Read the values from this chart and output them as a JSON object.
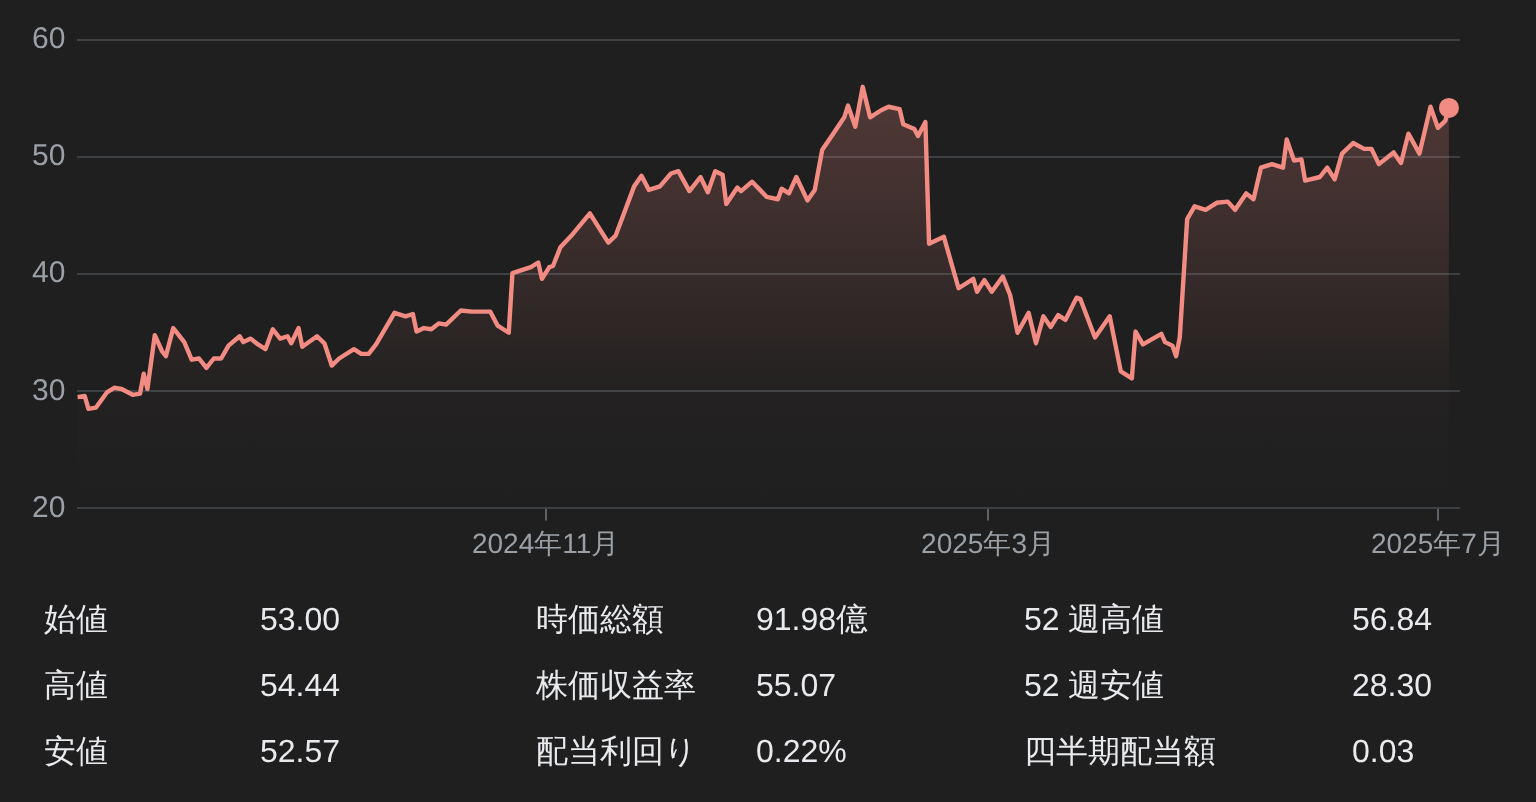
{
  "chart_data": {
    "type": "area",
    "color": "#f28b82",
    "x": [
      "2024-06-27",
      "2024-06-29",
      "2024-06-30",
      "2024-07-02",
      "2024-07-05",
      "2024-07-07",
      "2024-07-09",
      "2024-07-12",
      "2024-07-14",
      "2024-07-15",
      "2024-07-16",
      "2024-07-18",
      "2024-07-20",
      "2024-07-21",
      "2024-07-23",
      "2024-07-26",
      "2024-07-28",
      "2024-07-30",
      "2024-08-01",
      "2024-08-03",
      "2024-08-05",
      "2024-08-07",
      "2024-08-10",
      "2024-08-11",
      "2024-08-13",
      "2024-08-15",
      "2024-08-17",
      "2024-08-19",
      "2024-08-21",
      "2024-08-23",
      "2024-08-24",
      "2024-08-26",
      "2024-08-27",
      "2024-08-31",
      "2024-09-02",
      "2024-09-04",
      "2024-09-06",
      "2024-09-10",
      "2024-09-12",
      "2024-09-14",
      "2024-09-16",
      "2024-09-21",
      "2024-09-24",
      "2024-09-26",
      "2024-09-27",
      "2024-09-29",
      "2024-10-01",
      "2024-10-03",
      "2024-10-05",
      "2024-10-09",
      "2024-10-12",
      "2024-10-17",
      "2024-10-19",
      "2024-10-22",
      "2024-10-23",
      "2024-10-28",
      "2024-10-30",
      "2024-10-31",
      "2024-11-02",
      "2024-11-03",
      "2024-11-05",
      "2024-11-08",
      "2024-11-13",
      "2024-11-18",
      "2024-11-20",
      "2024-11-25",
      "2024-11-27",
      "2024-11-29",
      "2024-12-02",
      "2024-12-05",
      "2024-12-07",
      "2024-12-10",
      "2024-12-13",
      "2024-12-15",
      "2024-12-17",
      "2024-12-19",
      "2024-12-20",
      "2024-12-23",
      "2024-12-24",
      "2024-12-27",
      "2024-12-31",
      "2025-01-03",
      "2025-01-04",
      "2025-01-06",
      "2025-01-08",
      "2025-01-11",
      "2025-01-13",
      "2025-01-15",
      "2025-01-18",
      "2025-01-21",
      "2025-01-22",
      "2025-01-24",
      "2025-01-26",
      "2025-01-28",
      "2025-01-31",
      "2025-02-02",
      "2025-02-05",
      "2025-02-06",
      "2025-02-09",
      "2025-02-10",
      "2025-02-12",
      "2025-02-13",
      "2025-02-17",
      "2025-02-21",
      "2025-02-25",
      "2025-02-26",
      "2025-02-28",
      "2025-03-02",
      "2025-03-05",
      "2025-03-07",
      "2025-03-09",
      "2025-03-12",
      "2025-03-14",
      "2025-03-16",
      "2025-03-18",
      "2025-03-20",
      "2025-03-22",
      "2025-03-25",
      "2025-03-26",
      "2025-03-30",
      "2025-04-03",
      "2025-04-06",
      "2025-04-09",
      "2025-04-10",
      "2025-04-12",
      "2025-04-17",
      "2025-04-18",
      "2025-04-20",
      "2025-04-21",
      "2025-04-22",
      "2025-04-24",
      "2025-04-26",
      "2025-04-29",
      "2025-05-02",
      "2025-05-05",
      "2025-05-07",
      "2025-05-10",
      "2025-05-12",
      "2025-05-14",
      "2025-05-17",
      "2025-05-20",
      "2025-05-21",
      "2025-05-23",
      "2025-05-25",
      "2025-05-26",
      "2025-05-30",
      "2025-06-01",
      "2025-06-03",
      "2025-06-05",
      "2025-06-08",
      "2025-06-11",
      "2025-06-13",
      "2025-06-15",
      "2025-06-19",
      "2025-06-21",
      "2025-06-23",
      "2025-06-26",
      "2025-06-29",
      "2025-07-01",
      "2025-07-03",
      "2025-07-04"
    ],
    "values": [
      29.5,
      29.6,
      28.5,
      28.6,
      29.9,
      30.3,
      30.2,
      29.7,
      29.8,
      31.5,
      30.2,
      34.8,
      33.4,
      33.0,
      35.4,
      34.2,
      32.7,
      32.8,
      32.0,
      32.8,
      32.8,
      33.9,
      34.7,
      34.2,
      34.5,
      34.0,
      33.6,
      35.3,
      34.5,
      34.7,
      34.1,
      35.4,
      33.8,
      34.7,
      34.1,
      32.2,
      32.8,
      33.6,
      33.2,
      33.2,
      34.0,
      36.7,
      36.4,
      36.6,
      35.1,
      35.4,
      35.3,
      35.8,
      35.7,
      36.9,
      36.8,
      36.8,
      35.6,
      35.0,
      40.1,
      40.6,
      41.0,
      39.6,
      40.6,
      40.7,
      42.3,
      43.3,
      45.2,
      42.7,
      43.3,
      47.5,
      48.4,
      47.2,
      47.5,
      48.6,
      48.8,
      47.1,
      48.3,
      47.0,
      48.8,
      48.5,
      46.0,
      47.4,
      47.1,
      47.9,
      46.6,
      46.4,
      47.3,
      46.9,
      48.3,
      46.3,
      47.2,
      50.6,
      52.0,
      53.4,
      54.4,
      52.6,
      56.0,
      53.4,
      54.0,
      54.3,
      54.1,
      52.8,
      52.4,
      51.8,
      53.0,
      42.6,
      43.2,
      38.8,
      39.6,
      38.5,
      39.5,
      38.5,
      39.8,
      38.2,
      35.0,
      36.7,
      34.1,
      36.4,
      35.5,
      36.5,
      36.1,
      38.0,
      37.9,
      34.6,
      36.4,
      31.7,
      31.1,
      35.1,
      34.0,
      34.9,
      34.2,
      33.9,
      33.0,
      34.6,
      44.7,
      45.8,
      45.5,
      46.1,
      46.2,
      45.5,
      46.9,
      46.4,
      49.1,
      49.4,
      49.1,
      51.5,
      49.7,
      49.8,
      48.0,
      48.3,
      49.1,
      48.1,
      50.3,
      51.2,
      50.7,
      50.7,
      49.4,
      50.4,
      49.5,
      52.0,
      50.3,
      54.3,
      52.5,
      53.1,
      54.2
    ],
    "xlim": [
      "2024-06-27",
      "2025-07-07"
    ],
    "xticks": [
      {
        "value": "2024-11-01",
        "label": "2024年11月"
      },
      {
        "value": "2025-03-01",
        "label": "2025年3月"
      },
      {
        "value": "2025-07-01",
        "label": "2025年7月"
      }
    ],
    "ylim": [
      20,
      60
    ],
    "yticks": [
      20,
      30,
      40,
      50,
      60
    ],
    "grid": "y",
    "legend": false,
    "annotations": [
      "始値",
      "53.00",
      "時価総額",
      "91.98億",
      "52 週高値",
      "56.84",
      "高値",
      "54.44",
      "株価収益率",
      "55.07",
      "52 週安値",
      "28.30",
      "安値",
      "52.57",
      "配当利回り",
      "0.22%",
      "四半期配当額",
      "0.03"
    ]
  }
}
